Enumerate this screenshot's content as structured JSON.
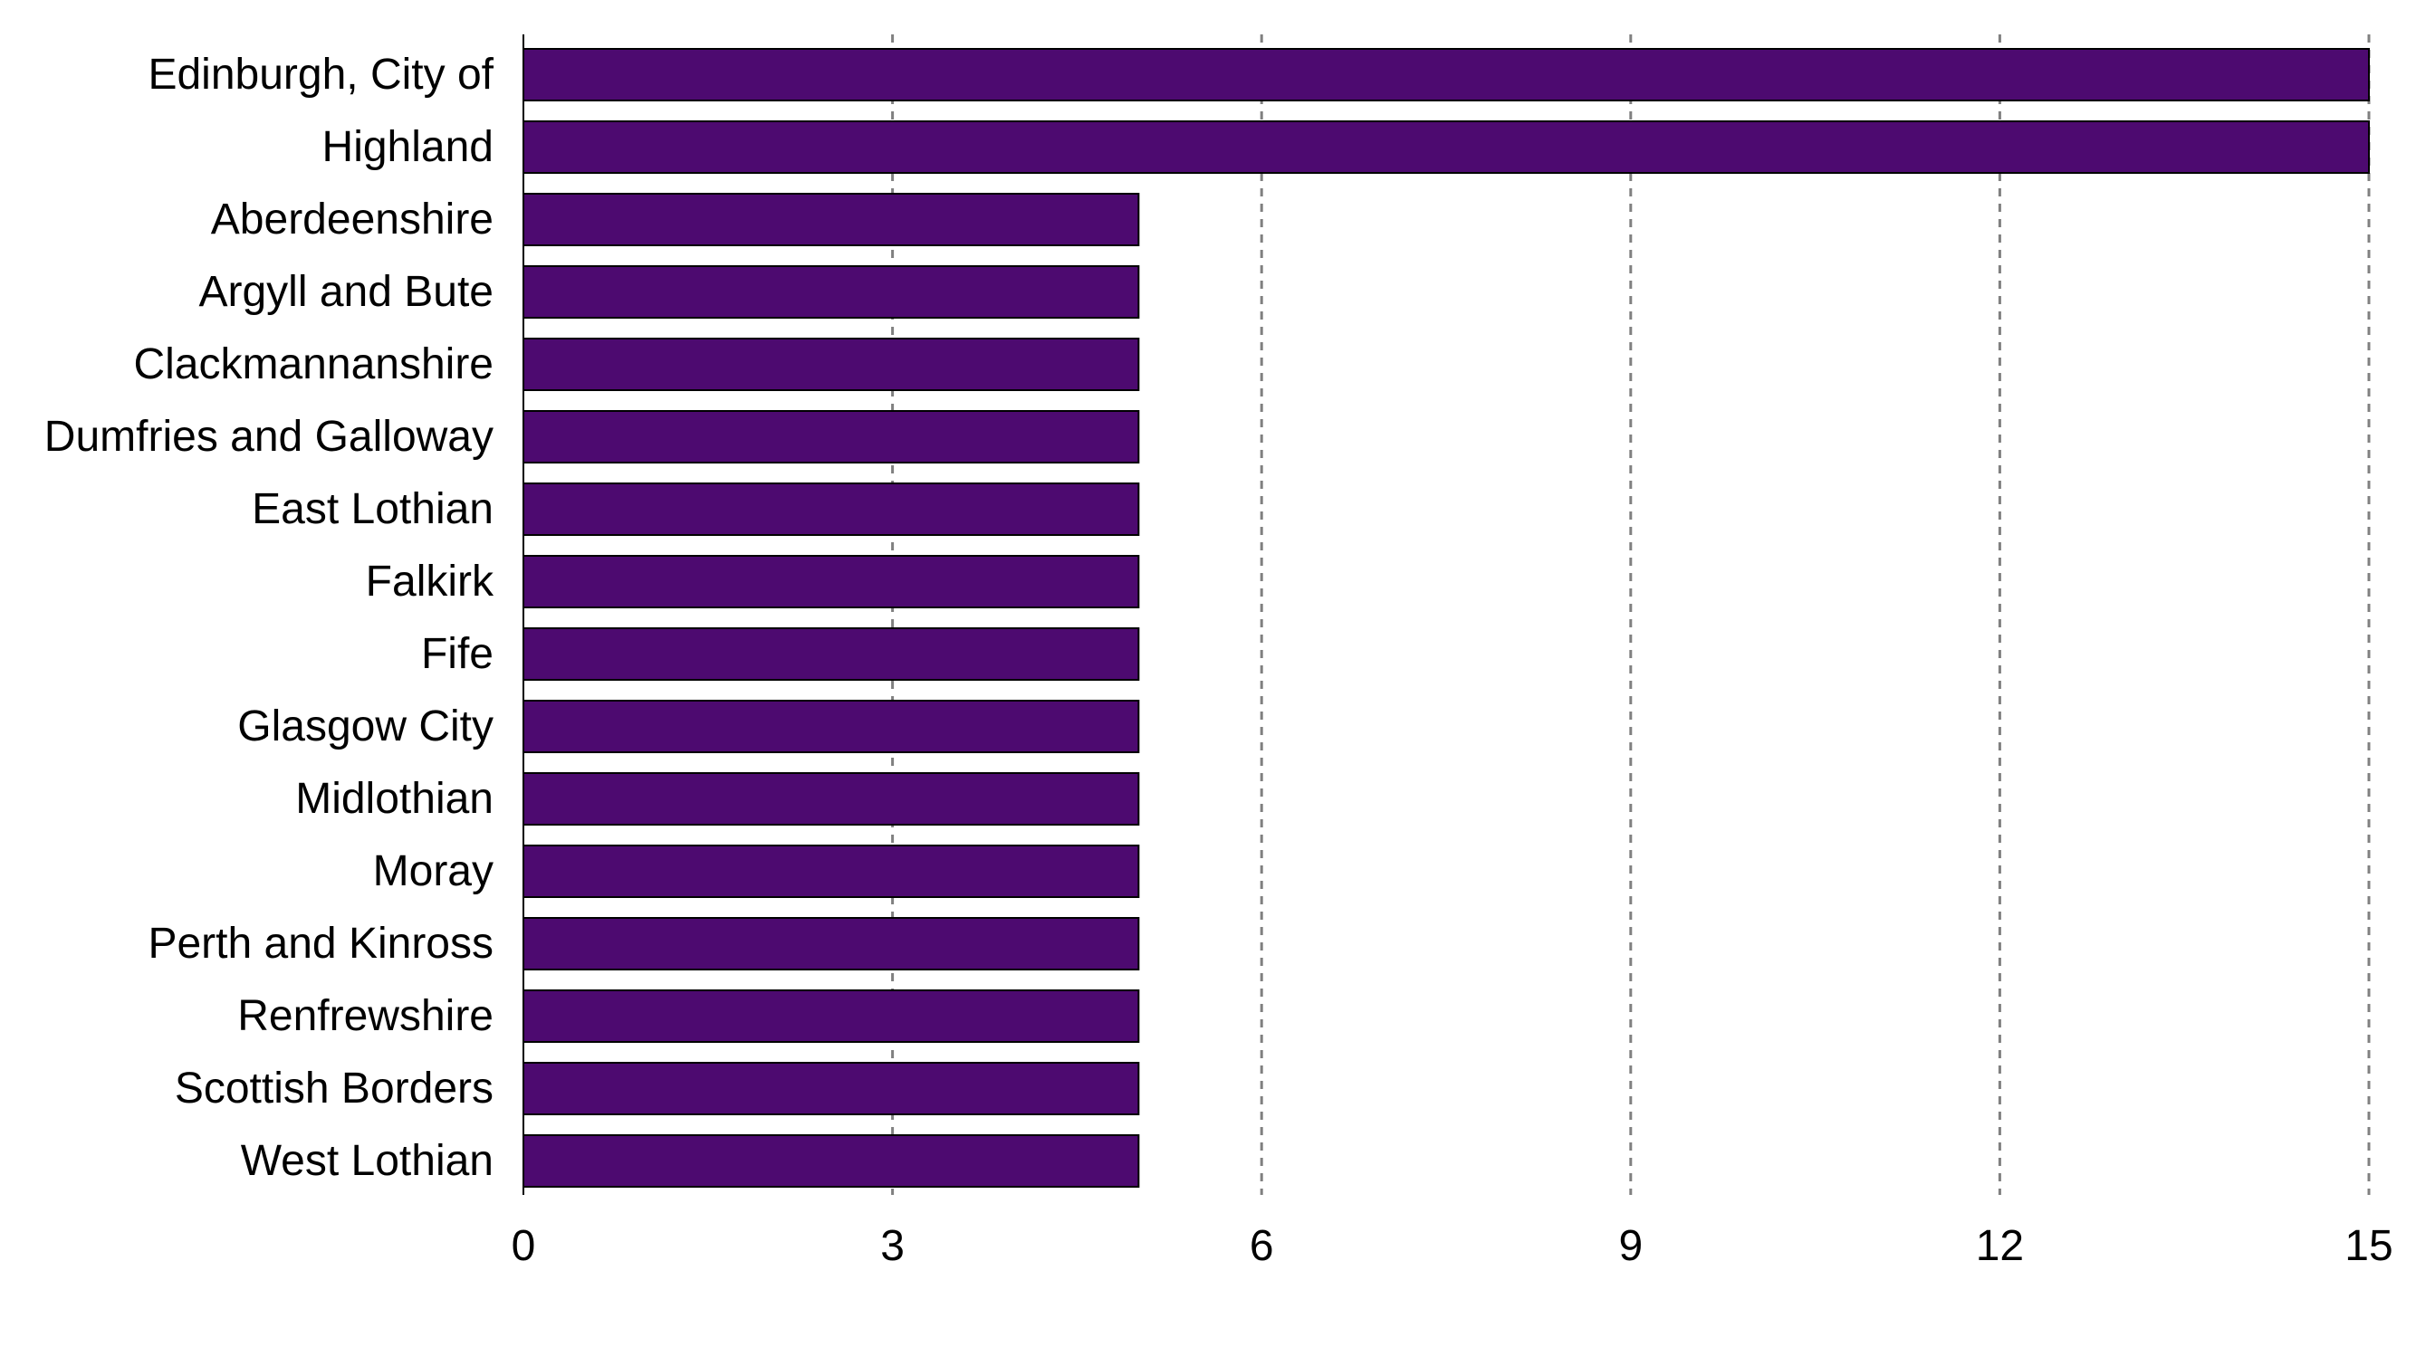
{
  "chart_data": {
    "type": "bar",
    "orientation": "horizontal",
    "categories": [
      "Edinburgh, City of",
      "Highland",
      "Aberdeenshire",
      "Argyll and Bute",
      "Clackmannanshire",
      "Dumfries and Galloway",
      "East Lothian",
      "Falkirk",
      "Fife",
      "Glasgow City",
      "Midlothian",
      "Moray",
      "Perth and Kinross",
      "Renfrewshire",
      "Scottish Borders",
      "West Lothian"
    ],
    "values": [
      15,
      15,
      5,
      5,
      5,
      5,
      5,
      5,
      5,
      5,
      5,
      5,
      5,
      5,
      5,
      5
    ],
    "xlim": [
      0,
      15
    ],
    "xticks": [
      "0",
      "3",
      "6",
      "9",
      "12",
      "15"
    ],
    "grid": "vertical dashed",
    "bar_color": "#4d0a70",
    "title": "",
    "xlabel": "",
    "ylabel": ""
  }
}
